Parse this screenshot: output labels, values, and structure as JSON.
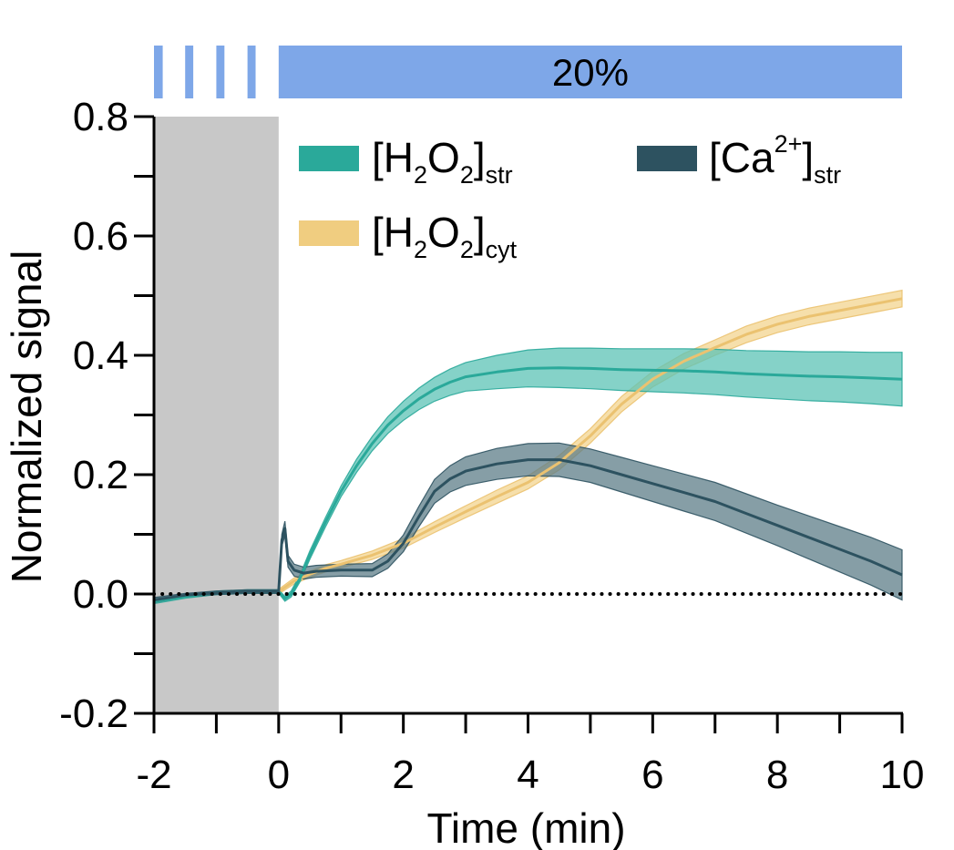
{
  "chart_data": {
    "type": "line",
    "xlabel": "Time (min)",
    "ylabel": "Normalized signal",
    "xlim": [
      -2,
      10
    ],
    "ylim": [
      -0.2,
      0.8
    ],
    "xticks": [
      -2,
      0,
      2,
      4,
      6,
      8,
      10
    ],
    "xtick_labels": [
      "-2",
      "0",
      "2",
      "4",
      "6",
      "8",
      "10"
    ],
    "yticks": [
      -0.2,
      0.0,
      0.2,
      0.4,
      0.6,
      0.8
    ],
    "ytick_labels": [
      "-0.2",
      "0.0",
      "0.2",
      "0.4",
      "0.6",
      "0.8"
    ],
    "grid": false,
    "baseline": 0.0,
    "shaded_region": {
      "x": [
        -2,
        0
      ],
      "color": "#c8c8c8"
    },
    "stimulus_bar": {
      "label": "20%",
      "color": "#7ea7e8",
      "pulses": [
        [
          -2,
          -1.86
        ],
        [
          -1.5,
          -1.37
        ],
        [
          -1.0,
          -0.87
        ],
        [
          -0.5,
          -0.37
        ]
      ],
      "continuous": [
        0,
        10
      ]
    },
    "legend_position": "top",
    "series": [
      {
        "name": "[H2O2]str",
        "label_main": "[H",
        "label_sub1": "2",
        "label_mid": "O",
        "label_sub2": "2",
        "label_close": "]",
        "label_suffix": "str",
        "color": "#2aa99a",
        "band_color": "#5cc3b6",
        "x": [
          -2,
          -1.5,
          -1,
          -0.5,
          0,
          0.1,
          0.2,
          0.35,
          0.5,
          0.75,
          1,
          1.25,
          1.5,
          1.75,
          2,
          2.25,
          2.5,
          2.75,
          3,
          3.5,
          4,
          4.5,
          5,
          5.5,
          6,
          6.5,
          7,
          7.5,
          8,
          8.5,
          9,
          9.5,
          10
        ],
        "y": [
          -0.012,
          -0.004,
          0.002,
          0.004,
          0.004,
          -0.008,
          0.0,
          0.028,
          0.065,
          0.12,
          0.172,
          0.215,
          0.252,
          0.283,
          0.307,
          0.327,
          0.343,
          0.355,
          0.364,
          0.372,
          0.378,
          0.379,
          0.378,
          0.376,
          0.375,
          0.374,
          0.372,
          0.369,
          0.367,
          0.365,
          0.364,
          0.362,
          0.36
        ],
        "err": [
          0.004,
          0.003,
          0.003,
          0.003,
          0.003,
          0.004,
          0.005,
          0.006,
          0.007,
          0.008,
          0.009,
          0.011,
          0.012,
          0.014,
          0.016,
          0.018,
          0.02,
          0.022,
          0.024,
          0.028,
          0.031,
          0.033,
          0.034,
          0.035,
          0.036,
          0.037,
          0.038,
          0.039,
          0.04,
          0.041,
          0.042,
          0.043,
          0.045
        ]
      },
      {
        "name": "[H2O2]cyt",
        "label_main": "[H",
        "label_sub1": "2",
        "label_mid": "O",
        "label_sub2": "2",
        "label_close": "]",
        "label_suffix": "cyt",
        "color": "#ebc270",
        "band_color": "#f3d48f",
        "x": [
          0,
          0.25,
          0.5,
          0.75,
          1,
          1.5,
          2,
          2.5,
          3,
          3.5,
          4,
          4.5,
          5,
          5.5,
          6,
          6.5,
          7,
          7.5,
          8,
          8.5,
          9,
          9.5,
          10
        ],
        "y": [
          0.004,
          0.022,
          0.033,
          0.043,
          0.05,
          0.065,
          0.085,
          0.112,
          0.138,
          0.163,
          0.187,
          0.22,
          0.265,
          0.318,
          0.36,
          0.39,
          0.413,
          0.435,
          0.452,
          0.465,
          0.475,
          0.485,
          0.495
        ],
        "err": [
          0.004,
          0.005,
          0.005,
          0.006,
          0.006,
          0.007,
          0.008,
          0.009,
          0.01,
          0.011,
          0.011,
          0.012,
          0.012,
          0.013,
          0.013,
          0.013,
          0.013,
          0.014,
          0.014,
          0.014,
          0.014,
          0.014,
          0.014
        ]
      },
      {
        "name": "[Ca2+]str",
        "label_main": "[Ca",
        "label_sup": "2+",
        "label_close": "]",
        "label_suffix": "str",
        "color": "#2d5260",
        "band_color": "#5e7d88",
        "x": [
          -2,
          -1.5,
          -1,
          -0.5,
          0,
          0.05,
          0.1,
          0.15,
          0.25,
          0.4,
          0.6,
          1,
          1.5,
          1.75,
          2,
          2.25,
          2.5,
          2.75,
          3,
          3.5,
          4,
          4.5,
          5,
          5.5,
          6,
          6.5,
          7,
          7.5,
          8,
          8.5,
          9,
          9.5,
          10
        ],
        "y": [
          -0.01,
          -0.002,
          0.002,
          0.004,
          0.004,
          0.09,
          0.11,
          0.055,
          0.04,
          0.035,
          0.038,
          0.04,
          0.04,
          0.055,
          0.085,
          0.13,
          0.172,
          0.193,
          0.206,
          0.218,
          0.225,
          0.225,
          0.215,
          0.2,
          0.185,
          0.17,
          0.155,
          0.135,
          0.115,
          0.095,
          0.075,
          0.055,
          0.032
        ],
        "err": [
          0.004,
          0.003,
          0.003,
          0.003,
          0.003,
          0.01,
          0.012,
          0.01,
          0.01,
          0.01,
          0.01,
          0.01,
          0.011,
          0.012,
          0.014,
          0.017,
          0.02,
          0.022,
          0.024,
          0.026,
          0.027,
          0.028,
          0.028,
          0.029,
          0.03,
          0.031,
          0.032,
          0.033,
          0.034,
          0.036,
          0.038,
          0.04,
          0.042
        ]
      }
    ]
  }
}
